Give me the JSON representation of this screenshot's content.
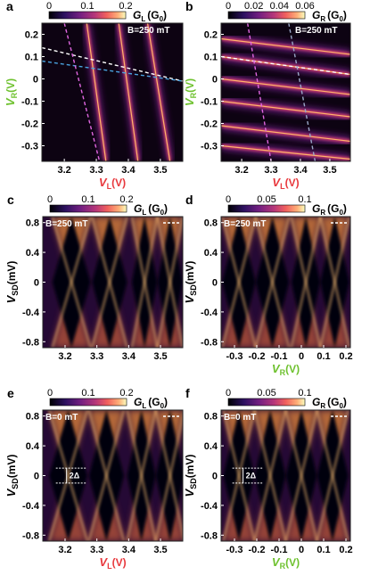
{
  "colors": {
    "vl_axis": "#e8383d",
    "vr_axis": "#6ec12e",
    "plot_bg": "#0d0312",
    "frame": "#222222"
  },
  "chart_data": [
    {
      "panel": "a",
      "type": "heatmap",
      "xlabel": "V",
      "xlabel_sub": "L",
      "xlabel_unit": "(V)",
      "ylabel": "V",
      "ylabel_sub": "R",
      "ylabel_unit": "(V)",
      "xlim": [
        3.13,
        3.57
      ],
      "ylim": [
        -0.37,
        0.25
      ],
      "xticks": [
        "3.2",
        "3.3",
        "3.4",
        "3.5"
      ],
      "xtick_values": [
        3.2,
        3.3,
        3.4,
        3.5
      ],
      "yticks": [
        "0.2",
        "0.1",
        "0",
        "-0.1",
        "-0.2",
        "-0.3"
      ],
      "ytick_values": [
        0.2,
        0.1,
        0,
        -0.1,
        -0.2,
        -0.3
      ],
      "colorbar": {
        "label": "G",
        "label_sub": "L",
        "unit": "(G",
        "unit_sub": "0",
        "ticks": [
          "0",
          "0.1",
          "0.2"
        ]
      },
      "field_label": "B=250 mT",
      "ridges": [
        {
          "x": [
            3.27,
            3.33
          ],
          "y": [
            0.25,
            -0.37
          ]
        },
        {
          "x": [
            3.37,
            3.43
          ],
          "y": [
            0.25,
            -0.37
          ]
        },
        {
          "x": [
            3.46,
            3.53
          ],
          "y": [
            0.25,
            -0.37
          ]
        }
      ],
      "guide_lines": [
        {
          "color": "#ffffff",
          "x": [
            3.13,
            3.57
          ],
          "y": [
            0.14,
            -0.01
          ]
        },
        {
          "color": "#4aa3df",
          "x": [
            3.13,
            3.57
          ],
          "y": [
            0.08,
            -0.01
          ]
        },
        {
          "color": "#e066e0",
          "x": [
            3.2,
            3.31
          ],
          "y": [
            0.25,
            -0.37
          ]
        }
      ]
    },
    {
      "panel": "b",
      "type": "heatmap",
      "xlabel": "V",
      "xlabel_sub": "L",
      "xlabel_unit": "(V)",
      "ylabel": "V",
      "ylabel_sub": "R",
      "ylabel_unit": "(V)",
      "xlim": [
        3.13,
        3.57
      ],
      "ylim": [
        -0.37,
        0.25
      ],
      "xticks": [
        "3.2",
        "3.3",
        "3.4",
        "3.5"
      ],
      "xtick_values": [
        3.2,
        3.3,
        3.4,
        3.5
      ],
      "yticks": [
        "0.2",
        "0.1",
        "0",
        "-0.1",
        "-0.2",
        "-0.3"
      ],
      "ytick_values": [
        0.2,
        0.1,
        0,
        -0.1,
        -0.2,
        -0.3
      ],
      "colorbar": {
        "label": "G",
        "label_sub": "R",
        "unit": "(G",
        "unit_sub": "0",
        "ticks": [
          "0",
          "0.02",
          "0.04",
          "0.06"
        ]
      },
      "field_label": "B=250 mT",
      "ridges": [
        {
          "x": [
            3.13,
            3.57
          ],
          "y": [
            0.18,
            0.11
          ]
        },
        {
          "x": [
            3.13,
            3.57
          ],
          "y": [
            0.1,
            0.02
          ]
        },
        {
          "x": [
            3.13,
            3.57
          ],
          "y": [
            0.0,
            -0.07
          ]
        },
        {
          "x": [
            3.13,
            3.57
          ],
          "y": [
            -0.1,
            -0.17
          ]
        },
        {
          "x": [
            3.13,
            3.57
          ],
          "y": [
            -0.21,
            -0.28
          ]
        },
        {
          "x": [
            3.13,
            3.57
          ],
          "y": [
            -0.3,
            -0.36
          ]
        }
      ],
      "guide_lines": [
        {
          "color": "#ffffff",
          "x": [
            3.13,
            3.57
          ],
          "y": [
            0.1,
            0.02
          ]
        },
        {
          "color": "#e066e0",
          "x": [
            3.22,
            3.3
          ],
          "y": [
            0.25,
            -0.37
          ]
        },
        {
          "color": "#9aa7c7",
          "x": [
            3.36,
            3.45
          ],
          "y": [
            0.25,
            -0.37
          ]
        }
      ]
    },
    {
      "panel": "c",
      "type": "heatmap",
      "xlabel": "",
      "xlabel_sub": "",
      "xlabel_unit": "",
      "ylabel": "V",
      "ylabel_sub": "SD",
      "ylabel_unit": "(mV)",
      "xlim": [
        3.13,
        3.57
      ],
      "ylim": [
        -0.88,
        0.88
      ],
      "xticks": [
        "3.2",
        "3.3",
        "3.4",
        "3.5"
      ],
      "xtick_values": [
        3.2,
        3.3,
        3.4,
        3.5
      ],
      "yticks": [
        "0.8",
        "0.4",
        "0",
        "-0.4",
        "-0.8"
      ],
      "ytick_values": [
        0.8,
        0.4,
        0,
        -0.4,
        -0.8
      ],
      "colorbar": {
        "label": "G",
        "label_sub": "L",
        "unit": "(G",
        "unit_sub": "0",
        "ticks": [
          "0",
          "0.1",
          "0.2"
        ]
      },
      "field_label": "B=250 mT",
      "diamond_centers": [
        3.22,
        3.34,
        3.45,
        3.53
      ]
    },
    {
      "panel": "d",
      "type": "heatmap",
      "xlabel": "V",
      "xlabel_sub": "R",
      "xlabel_unit": "(V)",
      "ylabel": "V",
      "ylabel_sub": "SD",
      "ylabel_unit": "(mV)",
      "xlim": [
        -0.36,
        0.22
      ],
      "ylim": [
        -0.88,
        0.88
      ],
      "xticks": [
        "-0.3",
        "-0.2",
        "-0.1",
        "0",
        "0.1",
        "0.2"
      ],
      "xtick_values": [
        -0.3,
        -0.2,
        -0.1,
        0,
        0.1,
        0.2
      ],
      "yticks": [
        "0.8",
        "0.4",
        "0",
        "-0.4",
        "-0.8"
      ],
      "ytick_values": [
        0.8,
        0.4,
        0,
        -0.4,
        -0.8
      ],
      "colorbar": {
        "label": "G",
        "label_sub": "R",
        "unit": "(G",
        "unit_sub": "0",
        "ticks": [
          "0",
          "0.05",
          "0.1"
        ]
      },
      "field_label": "B=250 mT",
      "diamond_centers": [
        -0.28,
        -0.13,
        0.02,
        0.15
      ]
    },
    {
      "panel": "e",
      "type": "heatmap",
      "xlabel": "V",
      "xlabel_sub": "L",
      "xlabel_unit": "(V)",
      "ylabel": "V",
      "ylabel_sub": "SD",
      "ylabel_unit": "(mV)",
      "xlim": [
        3.13,
        3.57
      ],
      "ylim": [
        -0.88,
        0.88
      ],
      "xticks": [
        "3.2",
        "3.3",
        "3.4",
        "3.5"
      ],
      "xtick_values": [
        3.2,
        3.3,
        3.4,
        3.5
      ],
      "yticks": [
        "0.8",
        "0.4",
        "0",
        "-0.4",
        "-0.8"
      ],
      "ytick_values": [
        0.8,
        0.4,
        0,
        -0.4,
        -0.8
      ],
      "colorbar": {
        "label": "G",
        "label_sub": "L",
        "unit": "(G",
        "unit_sub": "0",
        "ticks": [
          "0",
          "0.1",
          "0.2"
        ]
      },
      "field_label": "B=0 mT",
      "gap_label": "2Δ",
      "gap_bounds": [
        -0.1,
        0.1
      ],
      "diamond_centers": [
        3.21,
        3.33,
        3.44,
        3.53
      ]
    },
    {
      "panel": "f",
      "type": "heatmap",
      "xlabel": "V",
      "xlabel_sub": "R",
      "xlabel_unit": "(V)",
      "ylabel": "V",
      "ylabel_sub": "SD",
      "ylabel_unit": "(mV)",
      "xlim": [
        -0.36,
        0.22
      ],
      "ylim": [
        -0.88,
        0.88
      ],
      "xticks": [
        "-0.3",
        "-0.2",
        "-0.1",
        "0",
        "0.1",
        "0.2"
      ],
      "xtick_values": [
        -0.3,
        -0.2,
        -0.1,
        0,
        0.1,
        0.2
      ],
      "yticks": [
        "0.8",
        "0.4",
        "0",
        "-0.4",
        "-0.8"
      ],
      "ytick_values": [
        0.8,
        0.4,
        0,
        -0.4,
        -0.8
      ],
      "colorbar": {
        "label": "G",
        "label_sub": "R",
        "unit": "(G",
        "unit_sub": "0",
        "ticks": [
          "0",
          "0.05",
          "0.1"
        ]
      },
      "field_label": "B=0 mT",
      "gap_label": "2Δ",
      "gap_bounds": [
        -0.1,
        0.1
      ],
      "diamond_centers": [
        -0.28,
        -0.14,
        0.0,
        0.14
      ]
    }
  ]
}
